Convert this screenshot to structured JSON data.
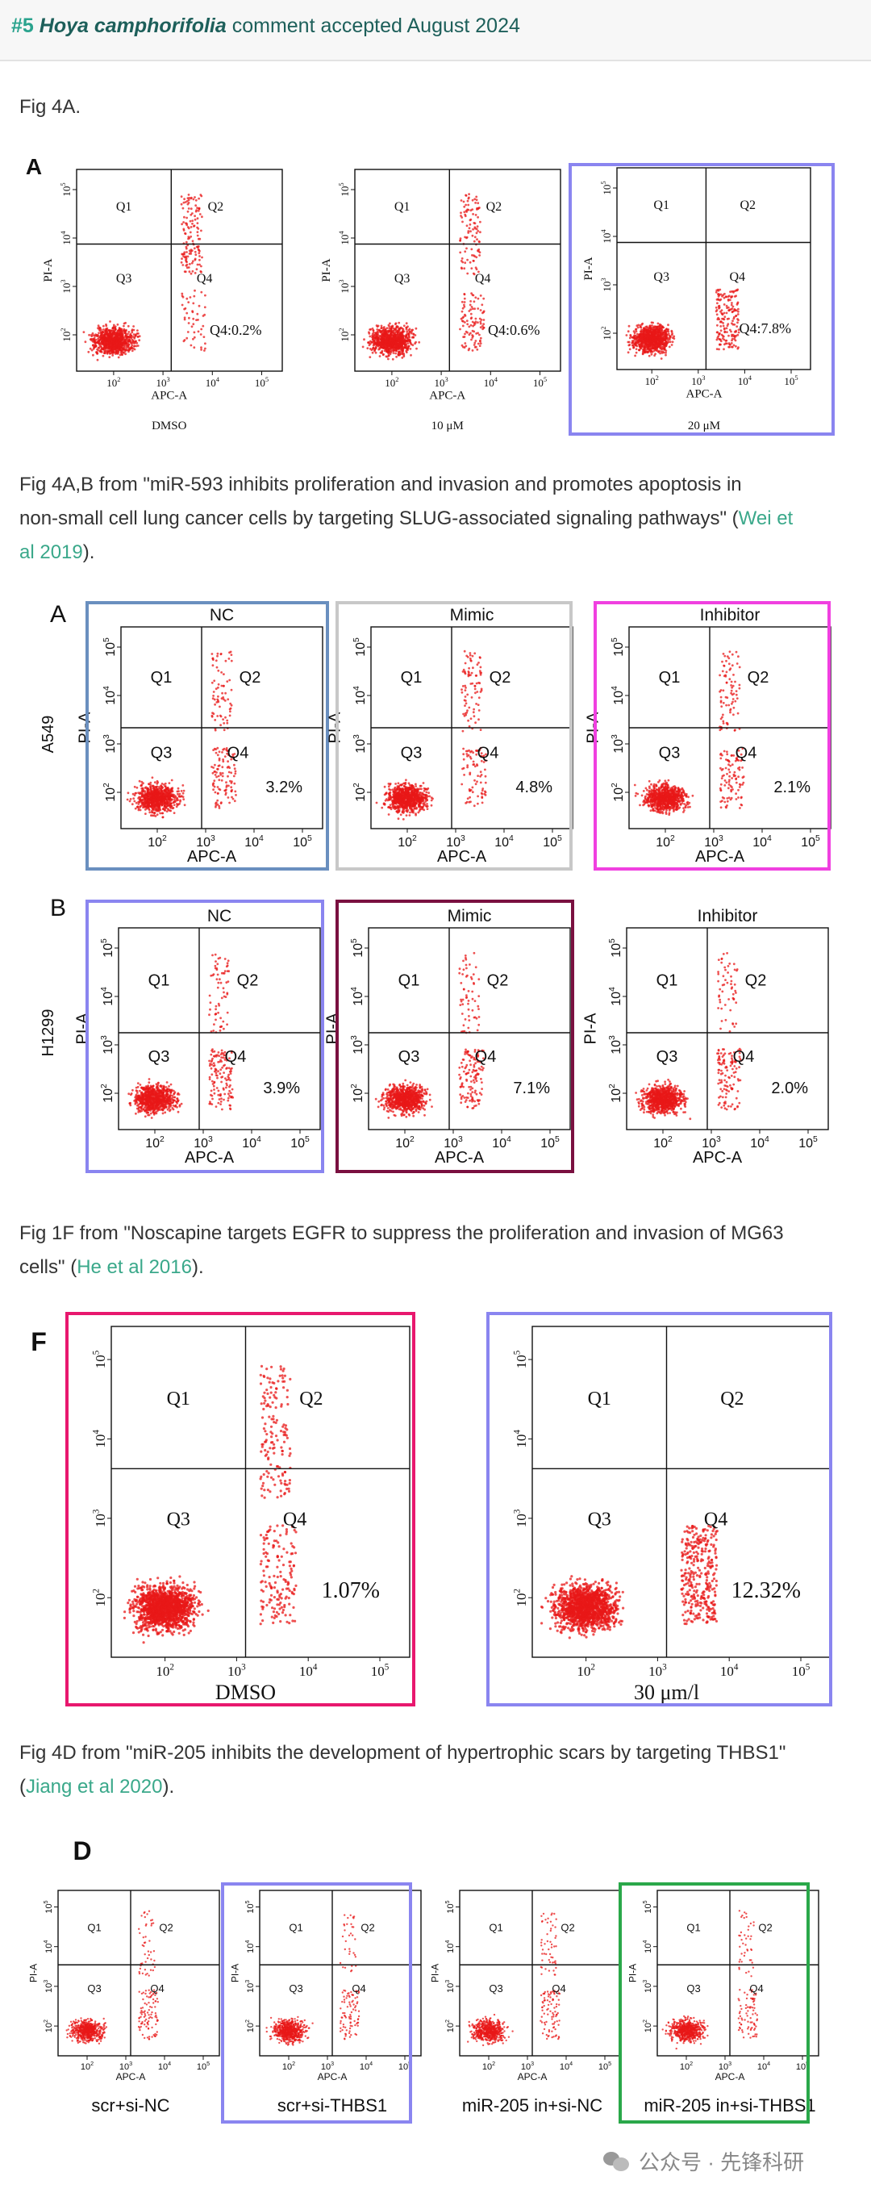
{
  "header": {
    "num": "#5",
    "species": "Hoya camphorifolia",
    "suffix": "comment accepted August 2024"
  },
  "text": {
    "p1": "Fig 4A.",
    "p2_line1": "Fig 4A,B from \"miR-593 inhibits proliferation and invasion and promotes apoptosis in",
    "p2_line2": "non-small cell lung cancer cells by targeting SLUG-associated signaling pathways\" (",
    "p2_link1": "Wei et",
    "p2_link2": "al 2019",
    "p2_end": ").",
    "p3_line1": "Fig 1F from \"Noscapine targets EGFR to suppress the proliferation and invasion of MG63",
    "p3_line2": "cells\" (",
    "p3_link": "He et al 2016",
    "p3_end": ").",
    "p4_line1": "Fig 4D from \"miR-205 inhibits the development of hypertrophic scars by targeting THBS1\"",
    "p4_open": "(",
    "p4_link": "Jiang et al 2020",
    "p4_end": ")."
  },
  "figures": {
    "fig1": {
      "letter": "A",
      "panels": [
        {
          "top": "",
          "bottom": "DMSO",
          "q4_label": "Q4:0.2%",
          "box": "",
          "q2_density": 0.04,
          "q4_density": 0.06
        },
        {
          "top": "",
          "bottom": "10 μM",
          "q4_label": "Q4:0.6%",
          "box": "",
          "q2_density": 0.06,
          "q4_density": 0.1
        },
        {
          "top": "",
          "bottom": "20 μM",
          "q4_label": "Q4:7.8%",
          "box": "#8a85f0",
          "q2_density": 0.1,
          "q4_density": 0.35
        }
      ]
    },
    "fig2": {
      "row_a_letter": "A",
      "row_b_letter": "B",
      "row_a_label": "A549",
      "row_b_label": "H1299",
      "panels_a": [
        {
          "top": "NC",
          "pct": "3.2%",
          "box": "#6a8fbf"
        },
        {
          "top": "Mimic",
          "pct": "4.8%",
          "box": "#c8c8c8"
        },
        {
          "top": "Inhibitor",
          "pct": "2.1%",
          "box": "#f040e0"
        }
      ],
      "panels_b": [
        {
          "top": "NC",
          "pct": "3.9%",
          "box": "#8a85f0"
        },
        {
          "top": "Mimic",
          "pct": "7.1%",
          "box": "#7a1040"
        },
        {
          "top": "Inhibitor",
          "pct": "2.0%",
          "box": ""
        }
      ]
    },
    "fig3": {
      "letter": "F",
      "panels": [
        {
          "bottom": "DMSO",
          "pct": "1.07%",
          "box": "#e8186e"
        },
        {
          "bottom": "30 μm/l",
          "pct": "12.32%",
          "box": "#8a85f0"
        }
      ]
    },
    "fig4": {
      "letter": "D",
      "panels": [
        {
          "bottom": "scr+si-NC",
          "box": ""
        },
        {
          "bottom": "scr+si-THBS1",
          "box": "#8a85f0"
        },
        {
          "bottom": "miR-205 in+si-NC",
          "box": ""
        },
        {
          "bottom": "miR-205 in+si-THBS1",
          "box": "#2aa84a"
        }
      ]
    }
  },
  "axis": {
    "x": "APC-A",
    "y": "PI-A",
    "q1": "Q1",
    "q2": "Q2",
    "q3": "Q3",
    "q4": "Q4",
    "ticks": [
      "10",
      "10",
      "10",
      "10"
    ],
    "exps": [
      "2",
      "3",
      "4",
      "5"
    ]
  },
  "watermark": "公众号 · 先锋科研",
  "colors": {
    "dot": "#e81818",
    "link": "#3aa88a",
    "header_num": "#2aa38e"
  }
}
